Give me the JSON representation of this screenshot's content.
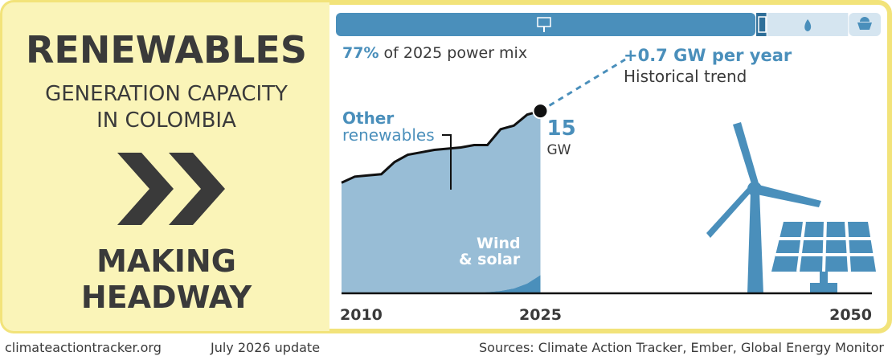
{
  "header": {
    "title": "RENEWABLES",
    "subtitle": [
      "GENERATION CAPACITY",
      "IN COLOMBIA"
    ],
    "status": [
      "MAKING",
      "HEADWAY"
    ]
  },
  "power_mix": {
    "values": [
      77,
      2,
      15,
      6
    ],
    "colors": [
      "#4a8fbb",
      "#2f6f99",
      "#d5e5f0",
      "#d5e5f0"
    ],
    "label": "77%",
    "label_text": "of 2025 power mix"
  },
  "chart_data": {
    "type": "area",
    "stacked": true,
    "x": [
      2010,
      2011,
      2012,
      2013,
      2014,
      2015,
      2016,
      2017,
      2018,
      2019,
      2020,
      2021,
      2022,
      2023,
      2024,
      2025
    ],
    "series": [
      {
        "name": "Wind & solar",
        "color": "#4a8fbb",
        "values": [
          0,
          0,
          0,
          0,
          0,
          0,
          0,
          0,
          0,
          0,
          0,
          0.1,
          0.2,
          0.4,
          0.8,
          1.5
        ]
      },
      {
        "name": "Other renewables",
        "color": "#98bdd6",
        "values": [
          9.1,
          9.6,
          9.7,
          9.8,
          10.8,
          11.4,
          11.6,
          11.8,
          11.9,
          12.0,
          12.2,
          12.1,
          13.3,
          13.4,
          13.9,
          13.5
        ]
      }
    ],
    "xlim": [
      2010,
      2050
    ],
    "xticks": [
      2010,
      2025,
      2050
    ],
    "ylim": [
      0,
      16
    ],
    "end_value": 15,
    "end_unit": "GW",
    "trend_label": "+0.7 GW per year",
    "trend_sublabel": "Historical trend"
  },
  "footer": {
    "site": "climateactiontracker.org",
    "date": "July 2026 update",
    "sources": "Sources: Climate Action Tracker, Ember, Global Energy Monitor"
  }
}
